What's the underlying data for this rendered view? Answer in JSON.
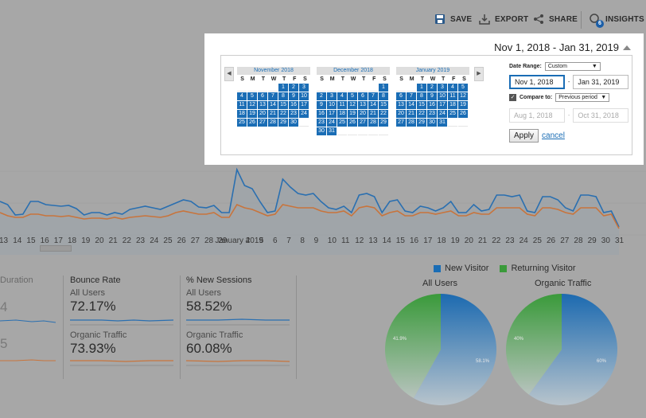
{
  "toolbar": {
    "save": "SAVE",
    "export": "EXPORT",
    "share": "SHARE",
    "insights": "INSIGHTS",
    "insights_badge": "6"
  },
  "date_range_header": "Nov 1, 2018 - Jan 31, 2019",
  "calendars": [
    {
      "month": "November 2018",
      "lead": 4,
      "days": 30
    },
    {
      "month": "December 2018",
      "lead": 6,
      "days": 31
    },
    {
      "month": "January 2019",
      "lead": 2,
      "days": 31
    }
  ],
  "dow": [
    "S",
    "M",
    "T",
    "W",
    "T",
    "F",
    "S"
  ],
  "form": {
    "date_range_label": "Date Range:",
    "date_range_value": "Custom",
    "start": "Nov 1, 2018",
    "end": "Jan 31, 2019",
    "compare_label": "Compare to:",
    "compare_value": "Previous period",
    "compare_start": "Aug 1, 2018",
    "compare_end": "Oct 31, 2018",
    "apply": "Apply",
    "cancel": "cancel",
    "dash": "-"
  },
  "axis_labels": [
    "13",
    "14",
    "15",
    "16",
    "17",
    "18",
    "19",
    "20",
    "21",
    "22",
    "23",
    "24",
    "25",
    "26",
    "27",
    "28",
    "29",
    "January 2019",
    "4",
    "5",
    "6",
    "7",
    "8",
    "9",
    "10",
    "11",
    "12",
    "13",
    "14",
    "15",
    "16",
    "17",
    "18",
    "19",
    "20",
    "21",
    "22",
    "23",
    "24",
    "25",
    "26",
    "27",
    "28",
    "29",
    "30",
    "31"
  ],
  "metrics": {
    "duration_title": "Duration",
    "duration_val1": "4",
    "duration_val2": "5",
    "bounce": {
      "title": "Bounce Rate",
      "seg1": "All Users",
      "val1": "72.17%",
      "seg2": "Organic Traffic",
      "val2": "73.93%"
    },
    "new_sessions": {
      "title": "% New Sessions",
      "seg1": "All Users",
      "val1": "58.52%",
      "seg2": "Organic Traffic",
      "val2": "60.08%"
    }
  },
  "legend": {
    "new": "New Visitor",
    "returning": "Returning Visitor"
  },
  "pies": [
    {
      "title": "All Users",
      "new_pct": 58.1,
      "ret_pct": 41.9,
      "new_label": "58.1%",
      "ret_label": "41.9%"
    },
    {
      "title": "Organic Traffic",
      "new_pct": 60,
      "ret_pct": 40,
      "new_label": "60%",
      "ret_label": "40%"
    }
  ],
  "colors": {
    "blue": "#1a6db5",
    "green": "#3a9a3a",
    "orange": "#c8743c",
    "line_blue": "#2a6fb0"
  }
}
